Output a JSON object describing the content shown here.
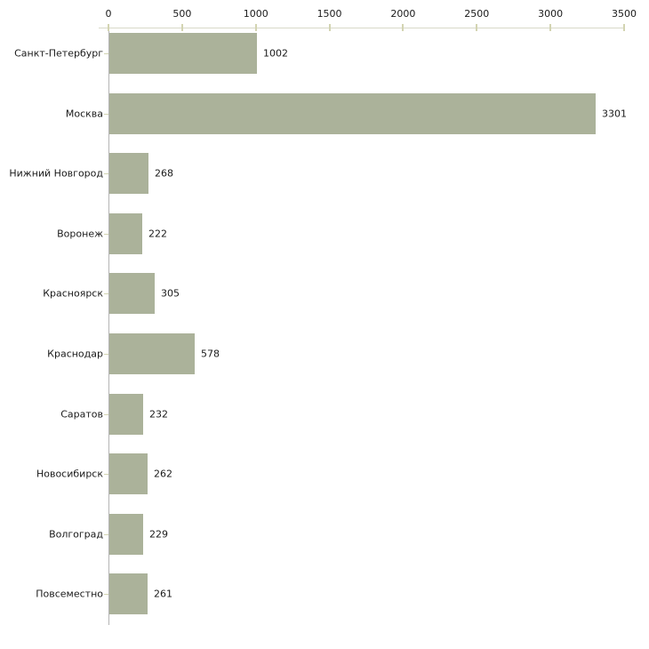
{
  "chart_data": {
    "type": "bar",
    "orientation": "horizontal",
    "title": "",
    "xlabel": "",
    "ylabel": "",
    "categories": [
      "Санкт-Петербург",
      "Москва",
      "Нижний Новгород",
      "Воронеж",
      "Красноярск",
      "Краснодар",
      "Саратов",
      "Новосибирск",
      "Волгоград",
      "Повсеместно"
    ],
    "values": [
      1002,
      3301,
      268,
      222,
      305,
      578,
      232,
      262,
      229,
      261
    ],
    "value_labels": [
      "1002",
      "3301",
      "268",
      "222",
      "305",
      "578",
      "232",
      "262",
      "229",
      "261"
    ],
    "x_ticks": [
      0,
      500,
      1000,
      1500,
      2000,
      2500,
      3000,
      3500
    ],
    "x_tick_labels": [
      "0",
      "500",
      "1000",
      "1500",
      "2000",
      "2500",
      "3000",
      "3500"
    ],
    "xlim": [
      0,
      3500
    ],
    "grid": false,
    "legend": false,
    "axis_position": "top",
    "colors": {
      "bar_fill": "#abb29a",
      "top_axis_line": "#d8d9c8",
      "tick_mark": "#d3d4b2",
      "left_axis_line": "#b4b4b4",
      "text": "#1a1a1a",
      "background": "#ffffff"
    }
  }
}
